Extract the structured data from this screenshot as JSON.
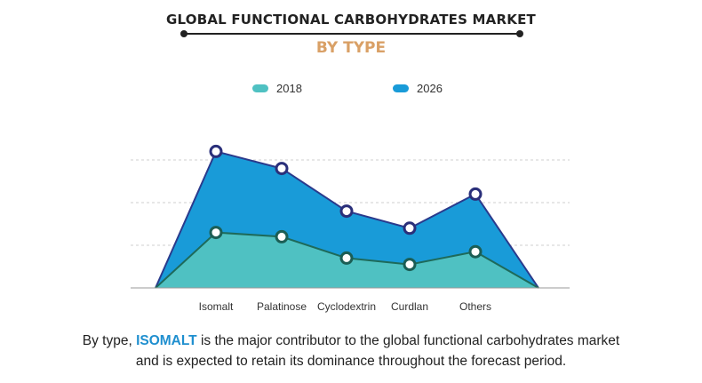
{
  "header": {
    "title": "GLOBAL  FUNCTIONAL CARBOHYDRATES MARKET",
    "subtitle": "BY TYPE"
  },
  "legend": [
    {
      "label": "2018",
      "color": "#4fc1c2"
    },
    {
      "label": "2026",
      "color": "#199bd8"
    }
  ],
  "chart_data": {
    "type": "area",
    "categories": [
      "Isomalt",
      "Palatinose",
      "Cyclodextrin",
      "Curdlan",
      "Others"
    ],
    "series": [
      {
        "name": "2018",
        "values": [
          2.6,
          2.4,
          1.4,
          1.1,
          1.7
        ],
        "color": "#4fc1c2"
      },
      {
        "name": "2026",
        "values": [
          6.4,
          5.6,
          3.6,
          2.8,
          4.4
        ],
        "color": "#199bd8"
      }
    ],
    "ylim": [
      0,
      6.0
    ],
    "grid": true,
    "legend_position": "top"
  },
  "caption": {
    "prefix": "By type, ",
    "highlight": "ISOMALT",
    "line1_rest": " is the major contributor to the global functional carbohydrates market",
    "line2": "and is expected to retain its dominance throughout the forecast period."
  }
}
